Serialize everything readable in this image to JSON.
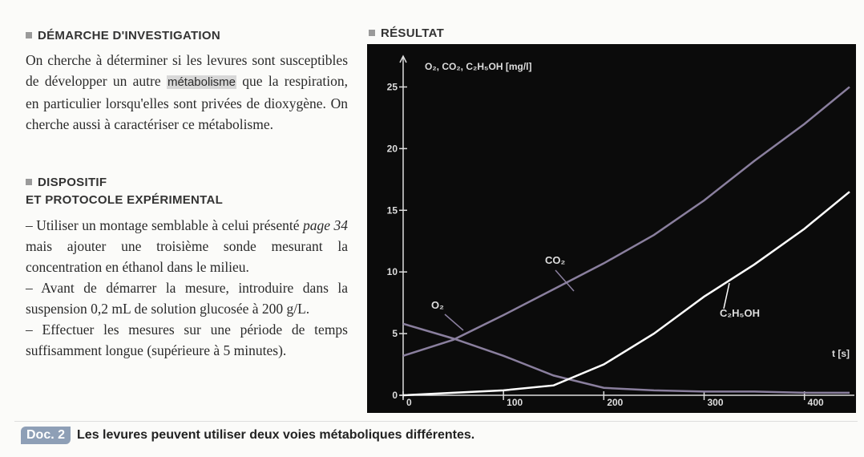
{
  "investigation": {
    "heading": "DÉMARCHE D'INVESTIGATION",
    "text_before": "On cherche à déterminer si les levures sont susceptibles de développer un autre ",
    "term": "métabolisme",
    "text_after": " que la respiration, en particulier lorsqu'elles sont privées de dioxygène. On cherche aussi à caractériser ce métabolisme."
  },
  "protocol": {
    "heading_1": "DISPOSITIF",
    "heading_2": "ET PROTOCOLE EXPÉRIMENTAL",
    "items": [
      [
        "– Utiliser un montage semblable à celui présenté ",
        "page 34",
        " mais ajouter une troisième sonde mesurant la concentration en éthanol dans le milieu."
      ],
      [
        "– Avant de démarrer la mesure, introduire dans la suspension 0,2 mL de solution glucosée à 200 g/L."
      ],
      [
        "– Effectuer les mesures sur une période de temps suffisamment longue (supérieure à 5 minutes)."
      ]
    ]
  },
  "result": {
    "heading": "RÉSULTAT"
  },
  "caption": {
    "doc": "Doc. 2",
    "text": "Les levures peuvent utiliser deux voies métaboliques différentes."
  },
  "chart_data": {
    "type": "line",
    "y_label": "O₂, CO₂, C₂H₅OH [mg/l]",
    "x_label": "t [s]",
    "x": [
      0,
      50,
      100,
      150,
      200,
      250,
      300,
      350,
      400,
      445
    ],
    "series": [
      {
        "name": "O₂",
        "color": "#8a7f9e",
        "values": [
          5.8,
          4.6,
          3.2,
          1.6,
          0.6,
          0.4,
          0.3,
          0.3,
          0.2,
          0.2
        ]
      },
      {
        "name": "CO₂",
        "color": "#8a7f9e",
        "values": [
          3.2,
          4.5,
          6.5,
          8.6,
          10.7,
          13,
          15.8,
          19,
          22,
          25
        ]
      },
      {
        "name": "C₂H₅OH",
        "color": "#ffffff",
        "values": [
          0,
          0.2,
          0.4,
          0.8,
          2.5,
          5,
          8,
          10.6,
          13.5,
          16.5
        ]
      }
    ],
    "xlim": [
      0,
      445
    ],
    "ylim": [
      0,
      27.5
    ],
    "xticks": [
      0,
      100,
      200,
      300,
      400
    ],
    "yticks": [
      0,
      5,
      10,
      15,
      20,
      25
    ],
    "background": "#0b0b0b"
  }
}
